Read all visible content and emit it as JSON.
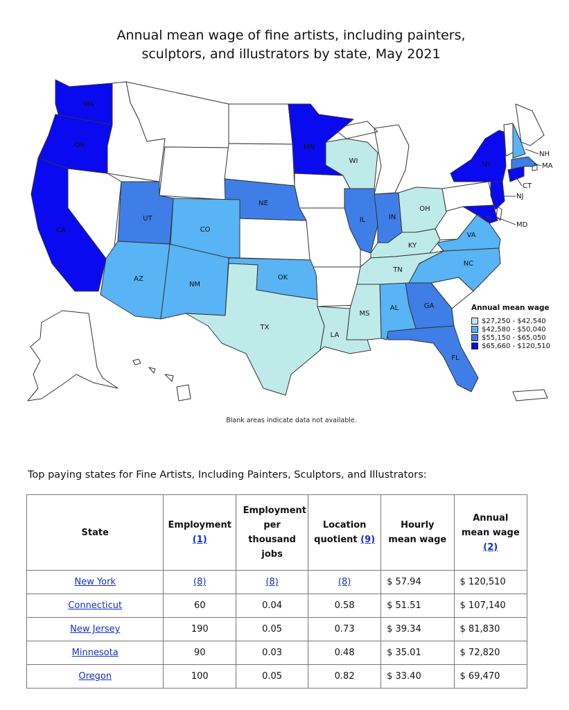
{
  "title_line1": "Annual mean wage of fine artists, including painters,",
  "title_line2": "sculptors, and illustrators by state, May 2021",
  "colors": {
    "tier1": "#bfeaea",
    "tier2": "#58b4f4",
    "tier3": "#3f7ee6",
    "tier4": "#0a0af0",
    "blank": "#ffffff"
  },
  "legend": {
    "title": "Annual mean wage",
    "items": [
      {
        "label": "$27,250 - $42,540",
        "color": "#bfeaea"
      },
      {
        "label": "$42,580 - $50,040",
        "color": "#58b4f4"
      },
      {
        "label": "$55,150 - $65,050",
        "color": "#3f7ee6"
      },
      {
        "label": "$65,660 - $120,510",
        "color": "#0a0af0"
      }
    ]
  },
  "state_labels": {
    "WA": "WA",
    "OR": "OR",
    "CA": "CA",
    "UT": "UT",
    "CO": "CO",
    "AZ": "AZ",
    "NM": "NM",
    "NE": "NE",
    "OK": "OK",
    "TX": "TX",
    "MN": "MN",
    "WI": "WI",
    "IL": "IL",
    "IN": "IN",
    "OH": "OH",
    "KY": "KY",
    "TN": "TN",
    "MS": "MS",
    "AL": "AL",
    "GA": "GA",
    "FL": "FL",
    "LA": "LA",
    "VA": "VA",
    "NC": "NC",
    "NY": "NY",
    "NH": "NH",
    "MA": "MA",
    "CT": "CT",
    "NJ": "NJ",
    "MD": "MD"
  },
  "map_note": "Blank areas indicate data not available.",
  "table_intro": "Top paying states for Fine Artists, Including Painters, Sculptors, and Illustrators:",
  "table": {
    "headers": {
      "state": "State",
      "employment": "Employment",
      "employment_ref": "(1)",
      "per_thousand": "Employment per thousand jobs",
      "lq": "Location quotient",
      "lq_ref": "(9)",
      "hourly": "Hourly mean wage",
      "annual": "Annual mean wage",
      "annual_ref": "(2)"
    },
    "rows": [
      {
        "state": "New York",
        "employment": "(8)",
        "per_thousand": "(8)",
        "lq": "(8)",
        "hourly": "$ 57.94",
        "annual": "$ 120,510"
      },
      {
        "state": "Connecticut",
        "employment": "60",
        "per_thousand": "0.04",
        "lq": "0.58",
        "hourly": "$ 51.51",
        "annual": "$ 107,140"
      },
      {
        "state": "New Jersey",
        "employment": "190",
        "per_thousand": "0.05",
        "lq": "0.73",
        "hourly": "$ 39.34",
        "annual": "$ 81,830"
      },
      {
        "state": "Minnesota",
        "employment": "90",
        "per_thousand": "0.03",
        "lq": "0.48",
        "hourly": "$ 35.01",
        "annual": "$ 72,820"
      },
      {
        "state": "Oregon",
        "employment": "100",
        "per_thousand": "0.05",
        "lq": "0.82",
        "hourly": "$ 33.40",
        "annual": "$ 69,470"
      }
    ]
  }
}
